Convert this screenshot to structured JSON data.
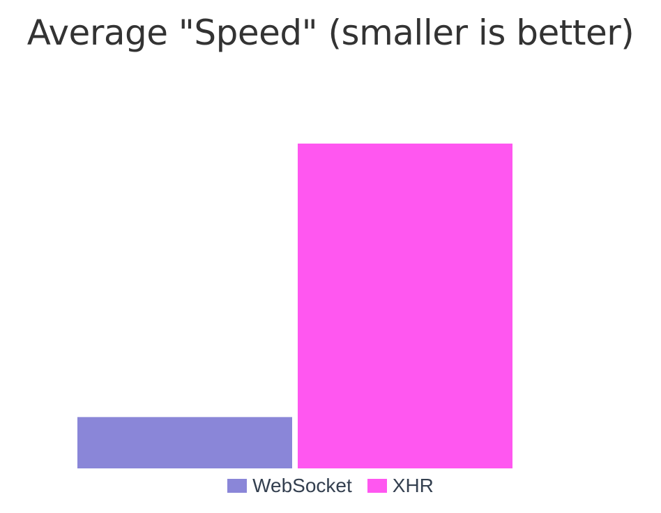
{
  "chart_data": {
    "type": "bar",
    "title": "Average \"Speed\" (smaller is better)",
    "series": [
      {
        "name": "WebSocket",
        "values": [
          15.8
        ],
        "color": "#8a86d8"
      },
      {
        "name": "XHR",
        "values": [
          100
        ],
        "color": "#ff57f0"
      }
    ],
    "ylim": [
      0,
      100
    ],
    "grid": false,
    "legend_position": "bottom"
  }
}
